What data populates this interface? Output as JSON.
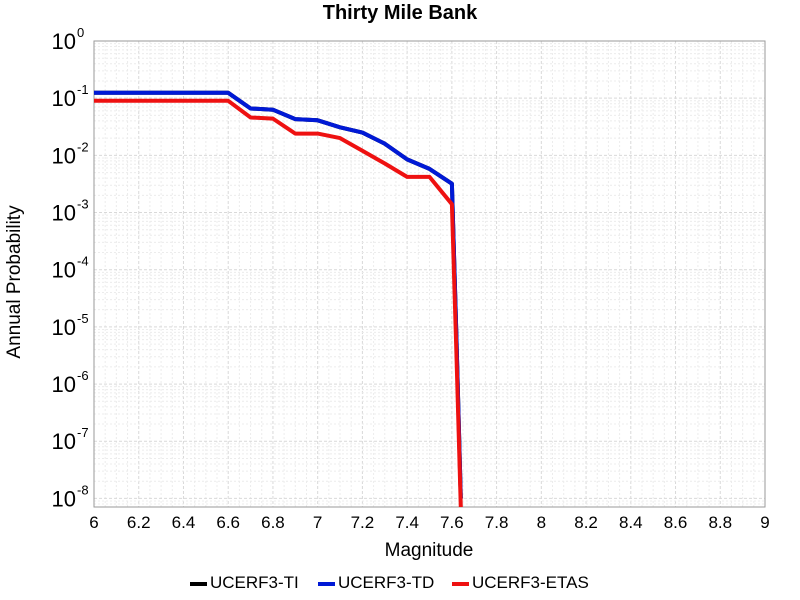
{
  "chart_data": {
    "type": "line",
    "title": "Thirty Mile Bank",
    "xlabel": "Magnitude",
    "ylabel": "Annual Probability",
    "xlim": [
      6,
      9
    ],
    "ylim_log10": [
      -8.15,
      0
    ],
    "y_scale": "log",
    "grid": true,
    "x_ticks": [
      "6",
      "6.2",
      "6.4",
      "6.6",
      "6.8",
      "7",
      "7.2",
      "7.4",
      "7.6",
      "7.8",
      "8",
      "8.2",
      "8.4",
      "8.6",
      "8.8",
      "9"
    ],
    "y_ticks": [
      {
        "base": "10",
        "exp": "0"
      },
      {
        "base": "10",
        "exp": "-1"
      },
      {
        "base": "10",
        "exp": "-2"
      },
      {
        "base": "10",
        "exp": "-3"
      },
      {
        "base": "10",
        "exp": "-4"
      },
      {
        "base": "10",
        "exp": "-5"
      },
      {
        "base": "10",
        "exp": "-6"
      },
      {
        "base": "10",
        "exp": "-7"
      },
      {
        "base": "10",
        "exp": "-8"
      }
    ],
    "legend_position": "bottom",
    "series": [
      {
        "name": "UCERF3-TI",
        "color": "#000000",
        "x": [
          6.0,
          6.1,
          6.2,
          6.3,
          6.4,
          6.5,
          6.6,
          6.7,
          6.8,
          6.9,
          7.0,
          7.1,
          7.2,
          7.3,
          7.4,
          7.5,
          7.6,
          7.62,
          7.64
        ],
        "y": [
          0.124,
          0.124,
          0.124,
          0.124,
          0.124,
          0.124,
          0.124,
          0.066,
          0.063,
          0.043,
          0.041,
          0.031,
          0.025,
          0.016,
          0.0085,
          0.0058,
          0.0032,
          8e-06,
          1e-08
        ]
      },
      {
        "name": "UCERF3-TD",
        "color": "#0019d6",
        "x": [
          6.0,
          6.1,
          6.2,
          6.3,
          6.4,
          6.5,
          6.6,
          6.7,
          6.8,
          6.9,
          7.0,
          7.1,
          7.2,
          7.3,
          7.4,
          7.5,
          7.6,
          7.62,
          7.64
        ],
        "y": [
          0.124,
          0.124,
          0.124,
          0.124,
          0.124,
          0.124,
          0.124,
          0.066,
          0.063,
          0.043,
          0.041,
          0.031,
          0.025,
          0.016,
          0.0085,
          0.0058,
          0.0032,
          8e-06,
          1e-08
        ]
      },
      {
        "name": "UCERF3-ETAS",
        "color": "#ee1111",
        "x": [
          6.0,
          6.1,
          6.2,
          6.3,
          6.4,
          6.5,
          6.6,
          6.7,
          6.8,
          6.9,
          7.0,
          7.1,
          7.2,
          7.3,
          7.4,
          7.5,
          7.6,
          7.62,
          7.64
        ],
        "y": [
          0.09,
          0.09,
          0.09,
          0.09,
          0.09,
          0.09,
          0.09,
          0.046,
          0.044,
          0.024,
          0.024,
          0.02,
          0.012,
          0.0072,
          0.0042,
          0.0042,
          0.0014,
          4e-06,
          7e-09
        ]
      }
    ]
  }
}
